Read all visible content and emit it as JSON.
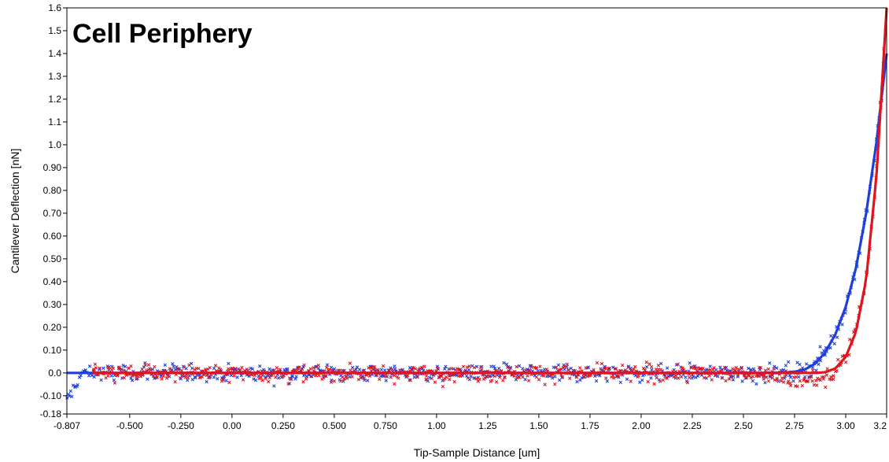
{
  "chart_data": {
    "type": "scatter",
    "title": "Cell Periphery",
    "xlabel": "Tip-Sample Distance [um]",
    "ylabel": "Cantilever Deflection [nN]",
    "xlim": [
      -0.807,
      3.2
    ],
    "ylim": [
      -0.18,
      1.6
    ],
    "grid": false,
    "x_ticks": [
      "-0.807",
      "-0.500",
      "-0.250",
      "0.00",
      "0.250",
      "0.500",
      "0.750",
      "1.00",
      "1.25",
      "1.50",
      "1.75",
      "2.00",
      "2.25",
      "2.50",
      "2.75",
      "3.00",
      "3.2"
    ],
    "x_tick_values": [
      -0.807,
      -0.5,
      -0.25,
      0.0,
      0.25,
      0.5,
      0.75,
      1.0,
      1.25,
      1.5,
      1.75,
      2.0,
      2.25,
      2.5,
      2.75,
      3.0,
      3.2
    ],
    "y_ticks": [
      "-0.18",
      "-0.10",
      "0.0",
      "0.10",
      "0.20",
      "0.30",
      "0.40",
      "0.50",
      "0.60",
      "0.70",
      "0.80",
      "0.90",
      "1.0",
      "1.1",
      "1.2",
      "1.3",
      "1.4",
      "1.5",
      "1.6"
    ],
    "y_tick_values": [
      -0.18,
      -0.1,
      0.0,
      0.1,
      0.2,
      0.3,
      0.4,
      0.5,
      0.6,
      0.7,
      0.8,
      0.9,
      1.0,
      1.1,
      1.2,
      1.3,
      1.4,
      1.5,
      1.6
    ],
    "series": [
      {
        "color": "#1f3fdc",
        "marker": "x",
        "fit_line": {
          "x": [
            -0.807,
            2.6,
            2.7,
            2.75,
            2.8,
            2.85,
            2.9,
            2.95,
            3.0,
            3.05,
            3.1,
            3.15,
            3.2
          ],
          "y": [
            0.0,
            0.0,
            0.002,
            0.005,
            0.015,
            0.04,
            0.09,
            0.17,
            0.29,
            0.46,
            0.7,
            1.01,
            1.4
          ]
        },
        "points_summary": {
          "x_range": [
            -0.807,
            3.2
          ],
          "baseline": 0.0,
          "noise": 0.045
        }
      },
      {
        "color": "#e0141c",
        "marker": "x",
        "fit_line": {
          "x": [
            -0.68,
            2.85,
            2.9,
            2.95,
            3.0,
            3.05,
            3.1,
            3.15,
            3.2
          ],
          "y": [
            0.0,
            0.0,
            0.003,
            0.02,
            0.07,
            0.18,
            0.41,
            0.86,
            1.6
          ]
        },
        "points_summary": {
          "x_range": [
            -0.68,
            3.2
          ],
          "baseline": 0.0,
          "noise": 0.045
        }
      }
    ]
  }
}
